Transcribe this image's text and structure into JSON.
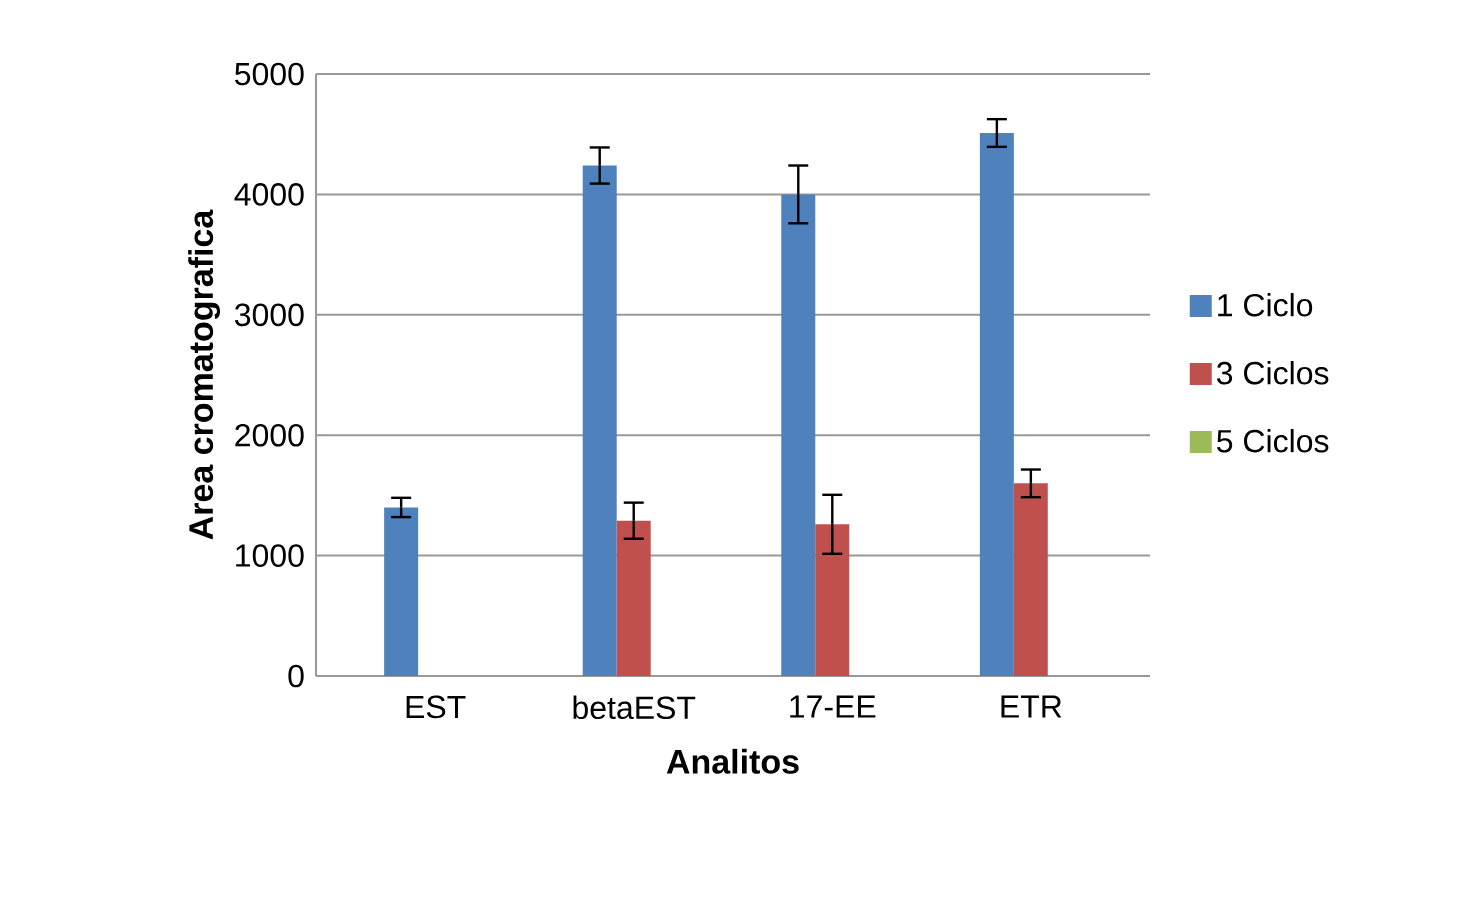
{
  "chart_data": {
    "type": "bar",
    "xlabel": "Analitos",
    "ylabel": "Area cromatografica",
    "categories": [
      "EST",
      "betaEST",
      "17-EE",
      "ETR"
    ],
    "series": [
      {
        "name": "1 Ciclo",
        "color": "#4f81bd",
        "values": [
          1400,
          4240,
          4000,
          4510
        ],
        "errors": [
          80,
          150,
          240,
          115
        ]
      },
      {
        "name": "3 Ciclos",
        "color": "#c0504d",
        "values": [
          null,
          1290,
          1260,
          1600
        ],
        "errors": [
          null,
          150,
          245,
          115
        ]
      },
      {
        "name": "5 Ciclos",
        "color": "#9bbb59",
        "values": [
          null,
          null,
          null,
          null
        ]
      }
    ],
    "ylim": [
      0,
      5000
    ],
    "yticks": [
      0,
      1000,
      2000,
      3000,
      4000,
      5000
    ],
    "grid": "y",
    "legend": "right"
  }
}
